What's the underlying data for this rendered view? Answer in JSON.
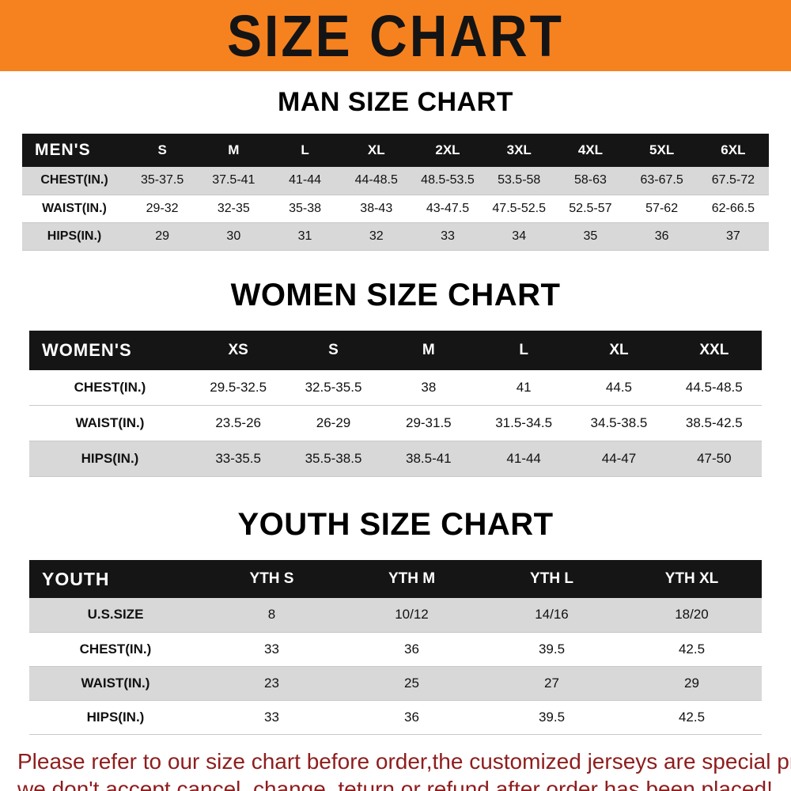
{
  "banner": {
    "title": "SIZE CHART"
  },
  "colors": {
    "banner_bg": "#f6821f",
    "table_header_bg": "#151515",
    "row_stripe_gray": "#d8d8d8",
    "footer_text": "#8e1d1d"
  },
  "sections": [
    {
      "heading": "MAN SIZE CHART",
      "table": {
        "header": [
          "MEN'S",
          "S",
          "M",
          "L",
          "XL",
          "2XL",
          "3XL",
          "4XL",
          "5XL",
          "6XL"
        ],
        "rows": [
          [
            "CHEST(IN.)",
            "35-37.5",
            "37.5-41",
            "41-44",
            "44-48.5",
            "48.5-53.5",
            "53.5-58",
            "58-63",
            "63-67.5",
            "67.5-72"
          ],
          [
            "WAIST(IN.)",
            "29-32",
            "32-35",
            "35-38",
            "38-43",
            "43-47.5",
            "47.5-52.5",
            "52.5-57",
            "57-62",
            "62-66.5"
          ],
          [
            "HIPS(IN.)",
            "29",
            "30",
            "31",
            "32",
            "33",
            "34",
            "35",
            "36",
            "37"
          ]
        ]
      }
    },
    {
      "heading": "WOMEN SIZE CHART",
      "table": {
        "header": [
          "WOMEN'S",
          "XS",
          "S",
          "M",
          "L",
          "XL",
          "XXL"
        ],
        "rows": [
          [
            "CHEST(IN.)",
            "29.5-32.5",
            "32.5-35.5",
            "38",
            "41",
            "44.5",
            "44.5-48.5"
          ],
          [
            "WAIST(IN.)",
            "23.5-26",
            "26-29",
            "29-31.5",
            "31.5-34.5",
            "34.5-38.5",
            "38.5-42.5"
          ],
          [
            "HIPS(IN.)",
            "33-35.5",
            "35.5-38.5",
            "38.5-41",
            "41-44",
            "44-47",
            "47-50"
          ]
        ]
      }
    },
    {
      "heading": "YOUTH SIZE CHART",
      "table": {
        "header": [
          "YOUTH",
          "YTH S",
          "YTH M",
          "YTH L",
          "YTH XL"
        ],
        "rows": [
          [
            "U.S.SIZE",
            "8",
            "10/12",
            "14/16",
            "18/20"
          ],
          [
            "CHEST(IN.)",
            "33",
            "36",
            "39.5",
            "42.5"
          ],
          [
            "WAIST(IN.)",
            "23",
            "25",
            "27",
            "29"
          ],
          [
            "HIPS(IN.)",
            "33",
            "36",
            "39.5",
            "42.5"
          ]
        ]
      }
    }
  ],
  "footer": {
    "line1": "Please refer to our size chart before order,the customized jerseys are special products,",
    "line2": "we don't accept cancel, change, teturn or refund after order has been placed!"
  }
}
